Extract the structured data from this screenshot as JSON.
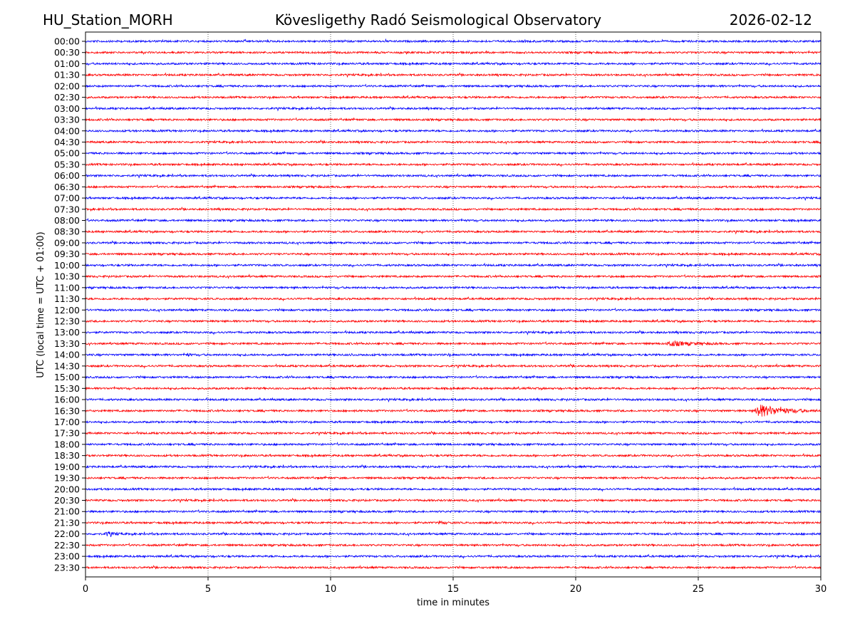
{
  "header": {
    "station": "HU_Station_MORH",
    "observatory": "Kövesligethy Radó Seismological Observatory",
    "date": "2026-02-12"
  },
  "chart_data": {
    "type": "line",
    "title": "Kövesligethy Radó Seismological Observatory",
    "xlabel": "time in minutes",
    "ylabel": "UTC (local time = UTC + 01:00)",
    "xlim": [
      0,
      30
    ],
    "xticks": [
      "0",
      "5",
      "10",
      "15",
      "20",
      "25",
      "30"
    ],
    "grid": "vertical dotted at x ticks",
    "row_labels": [
      "00:00",
      "00:30",
      "01:00",
      "01:30",
      "02:00",
      "02:30",
      "03:00",
      "03:30",
      "04:00",
      "04:30",
      "05:00",
      "05:30",
      "06:00",
      "06:30",
      "07:00",
      "07:30",
      "08:00",
      "08:30",
      "09:00",
      "09:30",
      "10:00",
      "10:30",
      "11:00",
      "11:30",
      "12:00",
      "12:30",
      "13:00",
      "13:30",
      "14:00",
      "14:30",
      "15:00",
      "15:30",
      "16:00",
      "16:30",
      "17:00",
      "17:30",
      "18:00",
      "18:30",
      "19:00",
      "19:30",
      "20:00",
      "20:30",
      "21:00",
      "21:30",
      "22:00",
      "22:30",
      "23:00",
      "23:30"
    ],
    "row_colors": [
      "#0000ff",
      "#ff0000"
    ],
    "events": [
      {
        "row": "13:30",
        "start_min": 23.7,
        "duration_min": 2.2,
        "peak": 3.5
      },
      {
        "row": "16:30",
        "start_min": 27.3,
        "duration_min": 2.6,
        "peak": 9
      },
      {
        "row": "14:00",
        "start_min": 4.1,
        "duration_min": 0.4,
        "peak": 2.2
      },
      {
        "row": "14:00",
        "start_min": 10.8,
        "duration_min": 0.2,
        "peak": 2.5
      },
      {
        "row": "14:00",
        "start_min": 14.8,
        "duration_min": 0.1,
        "peak": 1.8
      },
      {
        "row": "22:00",
        "start_min": 0.8,
        "duration_min": 0.8,
        "peak": 2.8
      },
      {
        "row": "21:30",
        "start_min": 14.4,
        "duration_min": 0.6,
        "peak": 2
      }
    ]
  }
}
